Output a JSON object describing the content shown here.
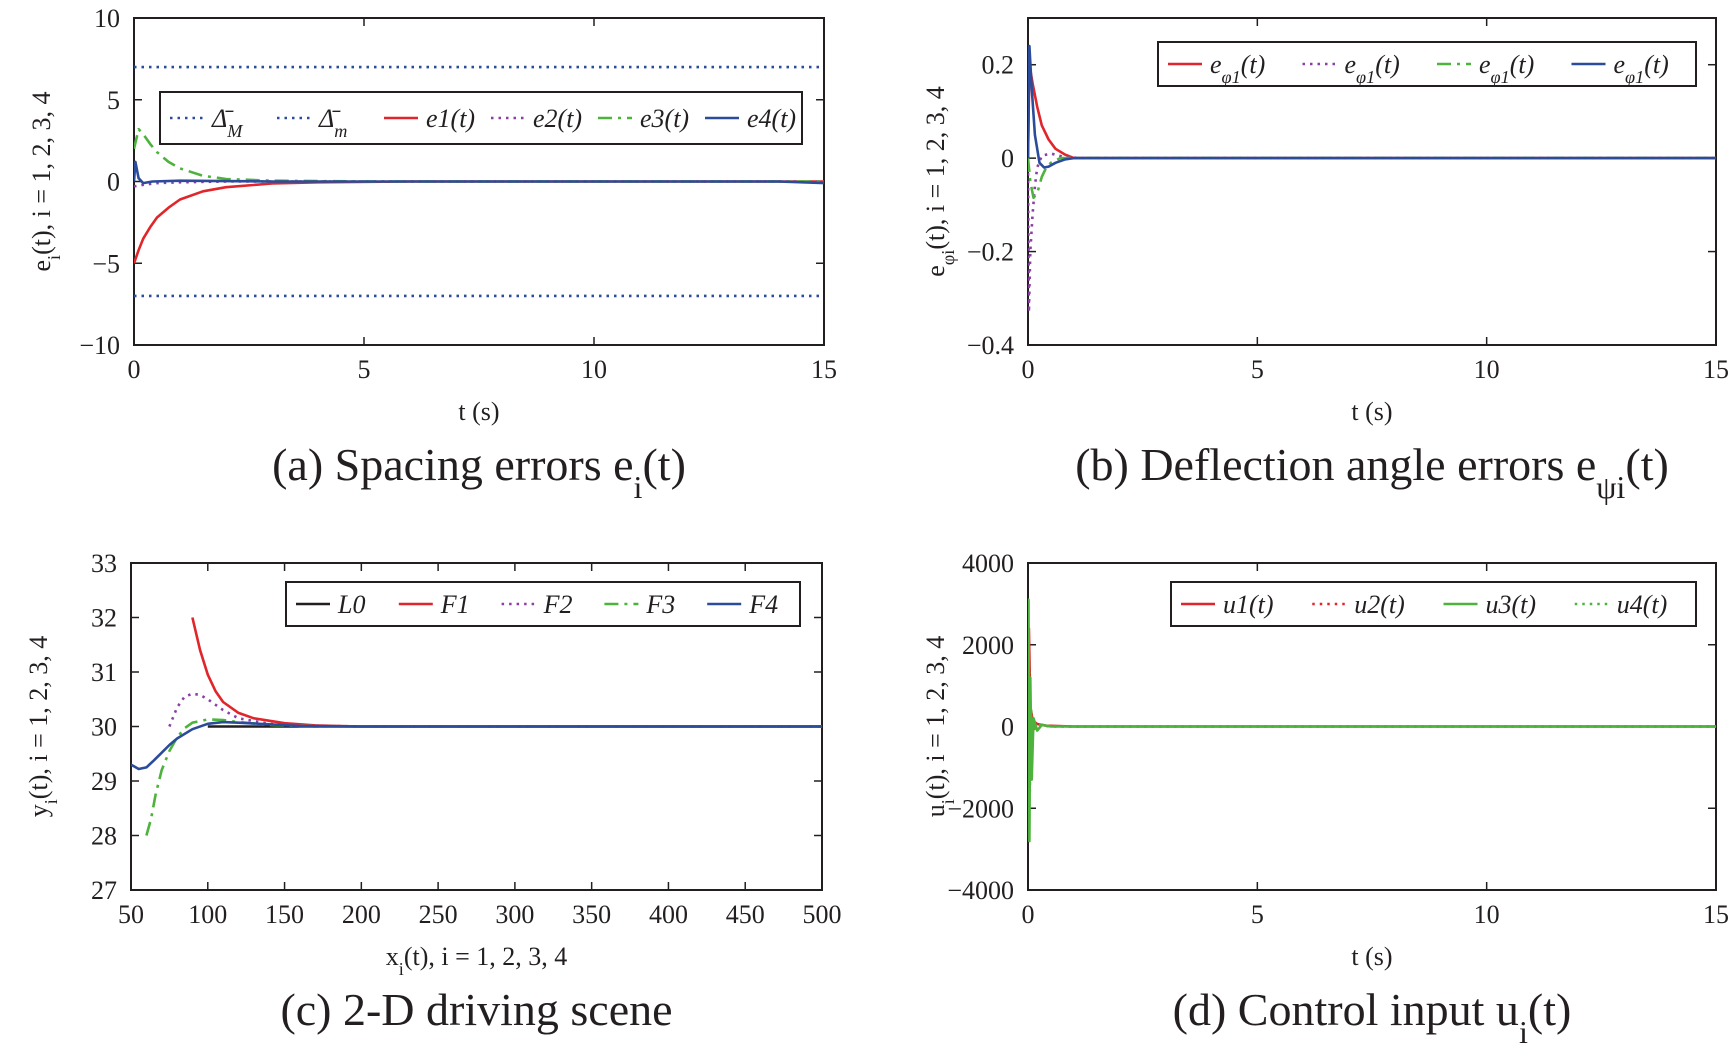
{
  "chart_data": [
    {
      "type": "line",
      "panel": "a",
      "caption": "(a) Spacing errors e_i(t)",
      "xlabel": "t (s)",
      "ylabel": "e_i(t), i = 1, 2, 3, 4",
      "xlim": [
        0,
        15
      ],
      "ylim": [
        -10,
        10
      ],
      "xticks": [
        "0",
        "5",
        "10",
        "15"
      ],
      "yticks": [
        "10",
        "5",
        "0",
        "−5",
        "−10"
      ],
      "legend_position": "top",
      "series": [
        {
          "name": "Δ̄_M",
          "color": "#2b4c9b",
          "style": "dotted",
          "x": [
            0,
            15
          ],
          "y": [
            7,
            7
          ]
        },
        {
          "name": "Δ̄_m",
          "color": "#2b4c9b",
          "style": "dotted",
          "x": [
            0,
            15
          ],
          "y": [
            -7,
            -7
          ]
        },
        {
          "name": "e1(t)",
          "color": "#e0262b",
          "style": "solid",
          "x": [
            0,
            0.1,
            0.2,
            0.35,
            0.5,
            0.75,
            1,
            1.5,
            2,
            3,
            4,
            6,
            8,
            10,
            12,
            15
          ],
          "y": [
            -5,
            -4.2,
            -3.5,
            -2.8,
            -2.2,
            -1.6,
            -1.1,
            -0.6,
            -0.35,
            -0.12,
            -0.05,
            0,
            0,
            0,
            0,
            0
          ]
        },
        {
          "name": "e2(t)",
          "color": "#8b3fa3",
          "style": "dotted",
          "x": [
            0,
            0.2,
            0.5,
            1,
            2,
            4,
            8,
            12,
            15
          ],
          "y": [
            -0.3,
            -0.2,
            -0.1,
            -0.05,
            0,
            0,
            0,
            0,
            0
          ]
        },
        {
          "name": "e3(t)",
          "color": "#4db33d",
          "style": "dashdot",
          "x": [
            0,
            0.1,
            0.2,
            0.35,
            0.5,
            0.75,
            1,
            1.5,
            2,
            3,
            5,
            8,
            12,
            15
          ],
          "y": [
            2,
            3.2,
            2.9,
            2.3,
            1.8,
            1.2,
            0.8,
            0.35,
            0.15,
            0.05,
            0,
            0,
            0,
            0
          ]
        },
        {
          "name": "e4(t)",
          "color": "#2b4c9b",
          "style": "solid",
          "x": [
            0,
            0.03,
            0.1,
            0.2,
            0.4,
            1,
            3,
            6,
            10,
            14,
            15
          ],
          "y": [
            0,
            1.2,
            0.2,
            -0.1,
            0,
            0.05,
            0,
            0,
            0,
            0,
            -0.1
          ]
        }
      ]
    },
    {
      "type": "line",
      "panel": "b",
      "caption": "(b) Deflection angle errors e_ψi(t)",
      "xlabel": "t (s)",
      "ylabel": "e_φi(t), i = 1, 2, 3, 4",
      "xlim": [
        0,
        15
      ],
      "ylim": [
        -0.4,
        0.3
      ],
      "xticks": [
        "0",
        "5",
        "10",
        "15"
      ],
      "yticks": [
        "0.2",
        "0",
        "−0.2",
        "−0.4"
      ],
      "legend_position": "top-right",
      "series": [
        {
          "name": "e_φ1(t)",
          "color": "#e0262b",
          "style": "solid",
          "x": [
            0,
            0.03,
            0.1,
            0.2,
            0.3,
            0.45,
            0.6,
            0.8,
            1,
            2,
            5,
            10,
            15
          ],
          "y": [
            0,
            0.2,
            0.16,
            0.11,
            0.07,
            0.04,
            0.02,
            0.008,
            0,
            0,
            0,
            0,
            0
          ]
        },
        {
          "name": "e_φ1(t)",
          "color": "#8b3fa3",
          "style": "dotted",
          "x": [
            0,
            0.02,
            0.05,
            0.1,
            0.15,
            0.2,
            0.3,
            0.5,
            0.8,
            1.2,
            5,
            15
          ],
          "y": [
            0,
            -0.33,
            -0.2,
            -0.12,
            -0.06,
            -0.02,
            0.005,
            0.01,
            0.002,
            0,
            0,
            0
          ]
        },
        {
          "name": "e_φ1(t)",
          "color": "#4db33d",
          "style": "dashdot",
          "x": [
            0,
            0.05,
            0.12,
            0.2,
            0.3,
            0.4,
            0.5,
            0.7,
            1,
            5,
            15
          ],
          "y": [
            0,
            -0.05,
            -0.085,
            -0.075,
            -0.04,
            -0.02,
            -0.01,
            0,
            0,
            0,
            0
          ]
        },
        {
          "name": "e_φ1(t)",
          "color": "#2b4c9b",
          "style": "solid",
          "x": [
            0,
            0.03,
            0.08,
            0.15,
            0.25,
            0.35,
            0.45,
            0.6,
            0.8,
            1,
            2,
            15
          ],
          "y": [
            0,
            0.24,
            0.15,
            0.05,
            -0.01,
            -0.02,
            -0.018,
            -0.01,
            -0.003,
            0,
            0,
            0
          ]
        }
      ]
    },
    {
      "type": "line",
      "panel": "c",
      "caption": "(c) 2-D driving scene",
      "xlabel": "x_i(t), i = 1, 2, 3, 4",
      "ylabel": "y_i(t), i = 1, 2, 3, 4",
      "xlim": [
        50,
        500
      ],
      "ylim": [
        27,
        33
      ],
      "xticks": [
        "50",
        "100",
        "150",
        "200",
        "250",
        "300",
        "350",
        "400",
        "450",
        "500"
      ],
      "yticks": [
        "33",
        "32",
        "31",
        "30",
        "29",
        "28",
        "27"
      ],
      "legend_position": "top",
      "series": [
        {
          "name": "L0",
          "color": "#231f20",
          "style": "solid",
          "x": [
            100,
            500
          ],
          "y": [
            30,
            30
          ]
        },
        {
          "name": "F1",
          "color": "#e0262b",
          "style": "solid",
          "x": [
            90,
            95,
            100,
            105,
            110,
            120,
            130,
            150,
            170,
            200,
            500
          ],
          "y": [
            32,
            31.4,
            30.95,
            30.65,
            30.45,
            30.25,
            30.15,
            30.06,
            30.02,
            30,
            30
          ]
        },
        {
          "name": "F2",
          "color": "#8b3fa3",
          "style": "dotted",
          "x": [
            75,
            80,
            85,
            90,
            95,
            100,
            110,
            120,
            140,
            160,
            200,
            500
          ],
          "y": [
            30,
            30.35,
            30.55,
            30.6,
            30.58,
            30.5,
            30.3,
            30.15,
            30.05,
            30.02,
            30,
            30
          ]
        },
        {
          "name": "F3",
          "color": "#4db33d",
          "style": "dashdot",
          "x": [
            60,
            63,
            66,
            70,
            75,
            80,
            85,
            90,
            100,
            110,
            120,
            140,
            160,
            200,
            500
          ],
          "y": [
            28,
            28.3,
            28.75,
            29.2,
            29.55,
            29.8,
            29.97,
            30.07,
            30.13,
            30.12,
            30.08,
            30.03,
            30.01,
            30,
            30
          ]
        },
        {
          "name": "F4",
          "color": "#2b4c9b",
          "style": "solid",
          "x": [
            50,
            55,
            60,
            65,
            70,
            75,
            80,
            90,
            100,
            110,
            120,
            140,
            160,
            200,
            500
          ],
          "y": [
            29.3,
            29.22,
            29.25,
            29.38,
            29.52,
            29.66,
            29.78,
            29.95,
            30.05,
            30.08,
            30.07,
            30.04,
            30.01,
            30,
            30
          ]
        }
      ]
    },
    {
      "type": "line",
      "panel": "d",
      "caption": "(d) Control input u_i(t)",
      "xlabel": "t (s)",
      "ylabel": "u_i(t), i = 1, 2, 3, 4",
      "xlim": [
        0,
        15
      ],
      "ylim": [
        -4000,
        4000
      ],
      "xticks": [
        "0",
        "5",
        "10",
        "15"
      ],
      "yticks": [
        "4000",
        "2000",
        "0",
        "−2000",
        "−4000"
      ],
      "legend_position": "top-right",
      "series": [
        {
          "name": "u1(t)",
          "color": "#e0262b",
          "style": "solid",
          "x": [
            0,
            0.02,
            0.05,
            0.1,
            0.2,
            0.4,
            1,
            15
          ],
          "y": [
            0,
            2400,
            500,
            150,
            60,
            20,
            0,
            0
          ]
        },
        {
          "name": "u2(t)",
          "color": "#e0262b",
          "style": "dotted",
          "x": [
            0,
            0.03,
            0.06,
            0.1,
            0.2,
            0.4,
            1,
            15
          ],
          "y": [
            0,
            -1500,
            -400,
            -100,
            30,
            10,
            0,
            0
          ]
        },
        {
          "name": "u3(t)",
          "color": "#4db33d",
          "style": "solid",
          "x": [
            0,
            0.01,
            0.03,
            0.05,
            0.08,
            0.12,
            0.2,
            0.3,
            0.5,
            1,
            15
          ],
          "y": [
            0,
            3100,
            -2800,
            1200,
            -1300,
            200,
            -100,
            40,
            0,
            0,
            0
          ]
        },
        {
          "name": "u4(t)",
          "color": "#4db33d",
          "style": "dotted",
          "x": [
            0,
            0.02,
            0.04,
            0.07,
            0.1,
            0.2,
            0.5,
            1,
            15
          ],
          "y": [
            0,
            1500,
            -1600,
            400,
            -200,
            50,
            0,
            0,
            0
          ]
        }
      ]
    }
  ]
}
